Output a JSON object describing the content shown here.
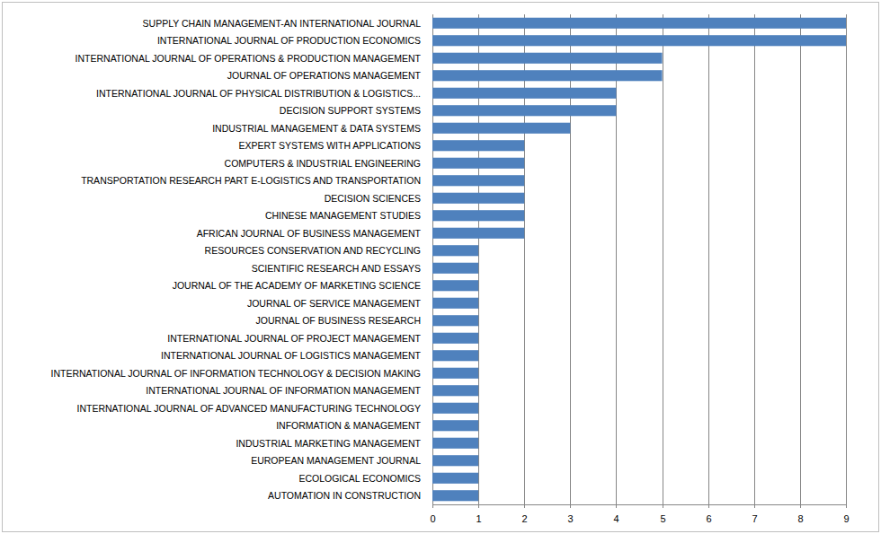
{
  "chart_data": {
    "type": "bar",
    "orientation": "horizontal",
    "categories": [
      "SUPPLY CHAIN MANAGEMENT-AN INTERNATIONAL JOURNAL",
      "INTERNATIONAL JOURNAL OF PRODUCTION ECONOMICS",
      "INTERNATIONAL JOURNAL OF OPERATIONS & PRODUCTION MANAGEMENT",
      "JOURNAL OF OPERATIONS MANAGEMENT",
      "INTERNATIONAL JOURNAL OF PHYSICAL DISTRIBUTION & LOGISTICS...",
      "DECISION SUPPORT SYSTEMS",
      "INDUSTRIAL MANAGEMENT & DATA SYSTEMS",
      "EXPERT SYSTEMS WITH APPLICATIONS",
      "COMPUTERS & INDUSTRIAL ENGINEERING",
      "TRANSPORTATION RESEARCH PART E-LOGISTICS AND TRANSPORTATION",
      "DECISION SCIENCES",
      "CHINESE MANAGEMENT STUDIES",
      "AFRICAN JOURNAL OF BUSINESS MANAGEMENT",
      "RESOURCES CONSERVATION AND RECYCLING",
      "SCIENTIFIC RESEARCH AND ESSAYS",
      "JOURNAL OF THE ACADEMY OF MARKETING SCIENCE",
      "JOURNAL OF SERVICE MANAGEMENT",
      "JOURNAL OF BUSINESS RESEARCH",
      "INTERNATIONAL JOURNAL OF PROJECT MANAGEMENT",
      "INTERNATIONAL JOURNAL OF LOGISTICS MANAGEMENT",
      "INTERNATIONAL JOURNAL OF INFORMATION TECHNOLOGY & DECISION MAKING",
      "INTERNATIONAL JOURNAL OF INFORMATION MANAGEMENT",
      "INTERNATIONAL JOURNAL OF ADVANCED MANUFACTURING TECHNOLOGY",
      "INFORMATION & MANAGEMENT",
      "INDUSTRIAL MARKETING MANAGEMENT",
      "EUROPEAN MANAGEMENT JOURNAL",
      "ECOLOGICAL ECONOMICS",
      "AUTOMATION IN CONSTRUCTION"
    ],
    "values": [
      9,
      9,
      5,
      5,
      4,
      4,
      3,
      2,
      2,
      2,
      2,
      2,
      2,
      1,
      1,
      1,
      1,
      1,
      1,
      1,
      1,
      1,
      1,
      1,
      1,
      1,
      1,
      1
    ],
    "color": "#4f81bd",
    "xlim": [
      0,
      9
    ],
    "xticks": [
      0,
      1,
      2,
      3,
      4,
      5,
      6,
      7,
      8,
      9
    ],
    "grid": true
  }
}
